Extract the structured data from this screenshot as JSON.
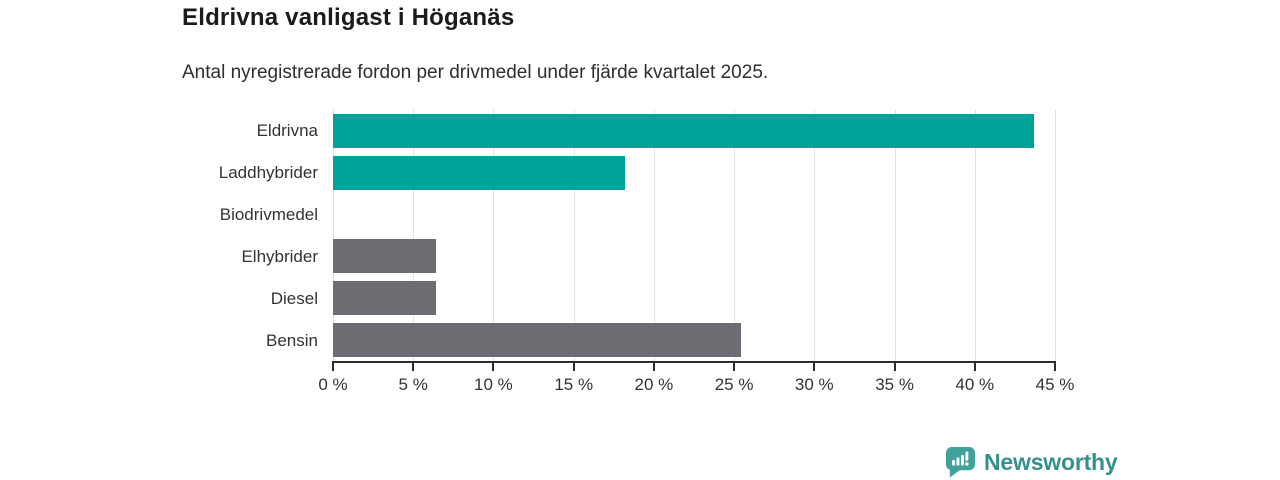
{
  "chart_data": {
    "type": "bar",
    "orientation": "horizontal",
    "title": "Eldrivna vanligast i Höganäs",
    "subtitle": "Antal nyregistrerade fordon per drivmedel under fjärde kvartalet 2025.",
    "categories": [
      "Eldrivna",
      "Laddhybrider",
      "Biodrivmedel",
      "Elhybrider",
      "Diesel",
      "Bensin"
    ],
    "values": [
      43.7,
      18.2,
      0,
      6.4,
      6.4,
      25.4
    ],
    "unit": "%",
    "xlim": [
      0,
      45
    ],
    "x_tick_step": 5,
    "x_tick_labels": [
      "0 %",
      "5 %",
      "10 %",
      "15 %",
      "20 %",
      "25 %",
      "30 %",
      "35 %",
      "40 %",
      "45 %"
    ],
    "bar_colors": [
      "#00a29a",
      "#00a29a",
      "#00a29a",
      "#6e6c72",
      "#6e6c72",
      "#6e6c72"
    ],
    "highlight_color": "#00a29a",
    "default_color": "#6e6c72",
    "grid": true,
    "gridline_color": "#e2e2e2",
    "axis_color": "#2b2b2b",
    "legend": false
  },
  "branding": {
    "logo_text": "Newsworthy",
    "logo_icon": "newsworthy-speech-bubble-barchart-icon",
    "logo_text_color": "#35908c",
    "logo_icon_color": "#41a29b"
  }
}
